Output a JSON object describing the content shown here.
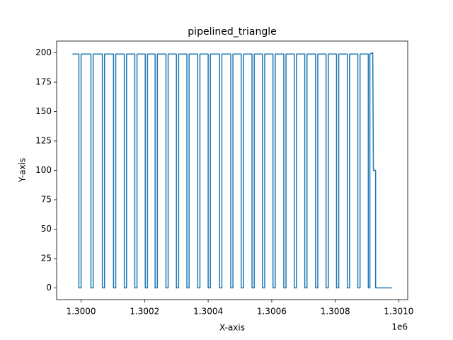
{
  "chart_data": {
    "type": "line",
    "title": "pipelined_triangle",
    "xlabel": "X-axis",
    "ylabel": "Y-axis",
    "x_offset_label": "1e6",
    "color": "#1f77b4",
    "grid": false,
    "x": [
      1299973,
      1299993,
      1299993,
      1300000,
      1300000,
      1300031,
      1300031,
      1300038,
      1300038,
      1300067,
      1300067,
      1300074,
      1300074,
      1300102,
      1300102,
      1300109,
      1300109,
      1300136,
      1300136,
      1300143,
      1300143,
      1300169,
      1300169,
      1300176,
      1300176,
      1300202,
      1300202,
      1300209,
      1300209,
      1300233,
      1300233,
      1300240,
      1300240,
      1300267,
      1300267,
      1300274,
      1300274,
      1300300,
      1300300,
      1300307,
      1300307,
      1300333,
      1300333,
      1300340,
      1300340,
      1300367,
      1300367,
      1300374,
      1300374,
      1300400,
      1300400,
      1300407,
      1300407,
      1300436,
      1300436,
      1300443,
      1300443,
      1300471,
      1300471,
      1300478,
      1300478,
      1300504,
      1300504,
      1300511,
      1300511,
      1300538,
      1300538,
      1300545,
      1300545,
      1300571,
      1300571,
      1300578,
      1300578,
      1300604,
      1300604,
      1300611,
      1300611,
      1300638,
      1300638,
      1300645,
      1300645,
      1300671,
      1300671,
      1300678,
      1300678,
      1300704,
      1300704,
      1300711,
      1300711,
      1300738,
      1300738,
      1300745,
      1300745,
      1300771,
      1300771,
      1300778,
      1300778,
      1300804,
      1300804,
      1300811,
      1300811,
      1300838,
      1300838,
      1300845,
      1300845,
      1300871,
      1300871,
      1300878,
      1300878,
      1300904,
      1300904,
      1300909,
      1300909,
      1300918,
      1300920,
      1300927,
      1300927,
      1300978
    ],
    "values": [
      199,
      199,
      0,
      0,
      199,
      199,
      0,
      0,
      199,
      199,
      0,
      0,
      199,
      199,
      0,
      0,
      199,
      199,
      0,
      0,
      199,
      199,
      0,
      0,
      199,
      199,
      0,
      0,
      199,
      199,
      0,
      0,
      199,
      199,
      0,
      0,
      199,
      199,
      0,
      0,
      199,
      199,
      0,
      0,
      199,
      199,
      0,
      0,
      199,
      199,
      0,
      0,
      199,
      199,
      0,
      0,
      199,
      199,
      0,
      0,
      199,
      199,
      0,
      0,
      199,
      199,
      0,
      0,
      199,
      199,
      0,
      0,
      199,
      199,
      0,
      0,
      199,
      199,
      0,
      0,
      199,
      199,
      0,
      0,
      199,
      199,
      0,
      0,
      199,
      199,
      0,
      0,
      199,
      199,
      0,
      0,
      199,
      199,
      0,
      0,
      199,
      199,
      0,
      0,
      199,
      199,
      0,
      0,
      199,
      199,
      0,
      0,
      199,
      200,
      100,
      100,
      0,
      0
    ],
    "xlim": [
      1299923,
      1301028
    ],
    "xticks": [
      {
        "value": 1300000,
        "label": "1.3000"
      },
      {
        "value": 1300200,
        "label": "1.3002"
      },
      {
        "value": 1300400,
        "label": "1.3004"
      },
      {
        "value": 1300600,
        "label": "1.3006"
      },
      {
        "value": 1300800,
        "label": "1.3008"
      },
      {
        "value": 1301000,
        "label": "1.3010"
      }
    ],
    "ylim": [
      -10,
      210
    ],
    "yticks": [
      0,
      25,
      50,
      75,
      100,
      125,
      150,
      175,
      200
    ]
  }
}
